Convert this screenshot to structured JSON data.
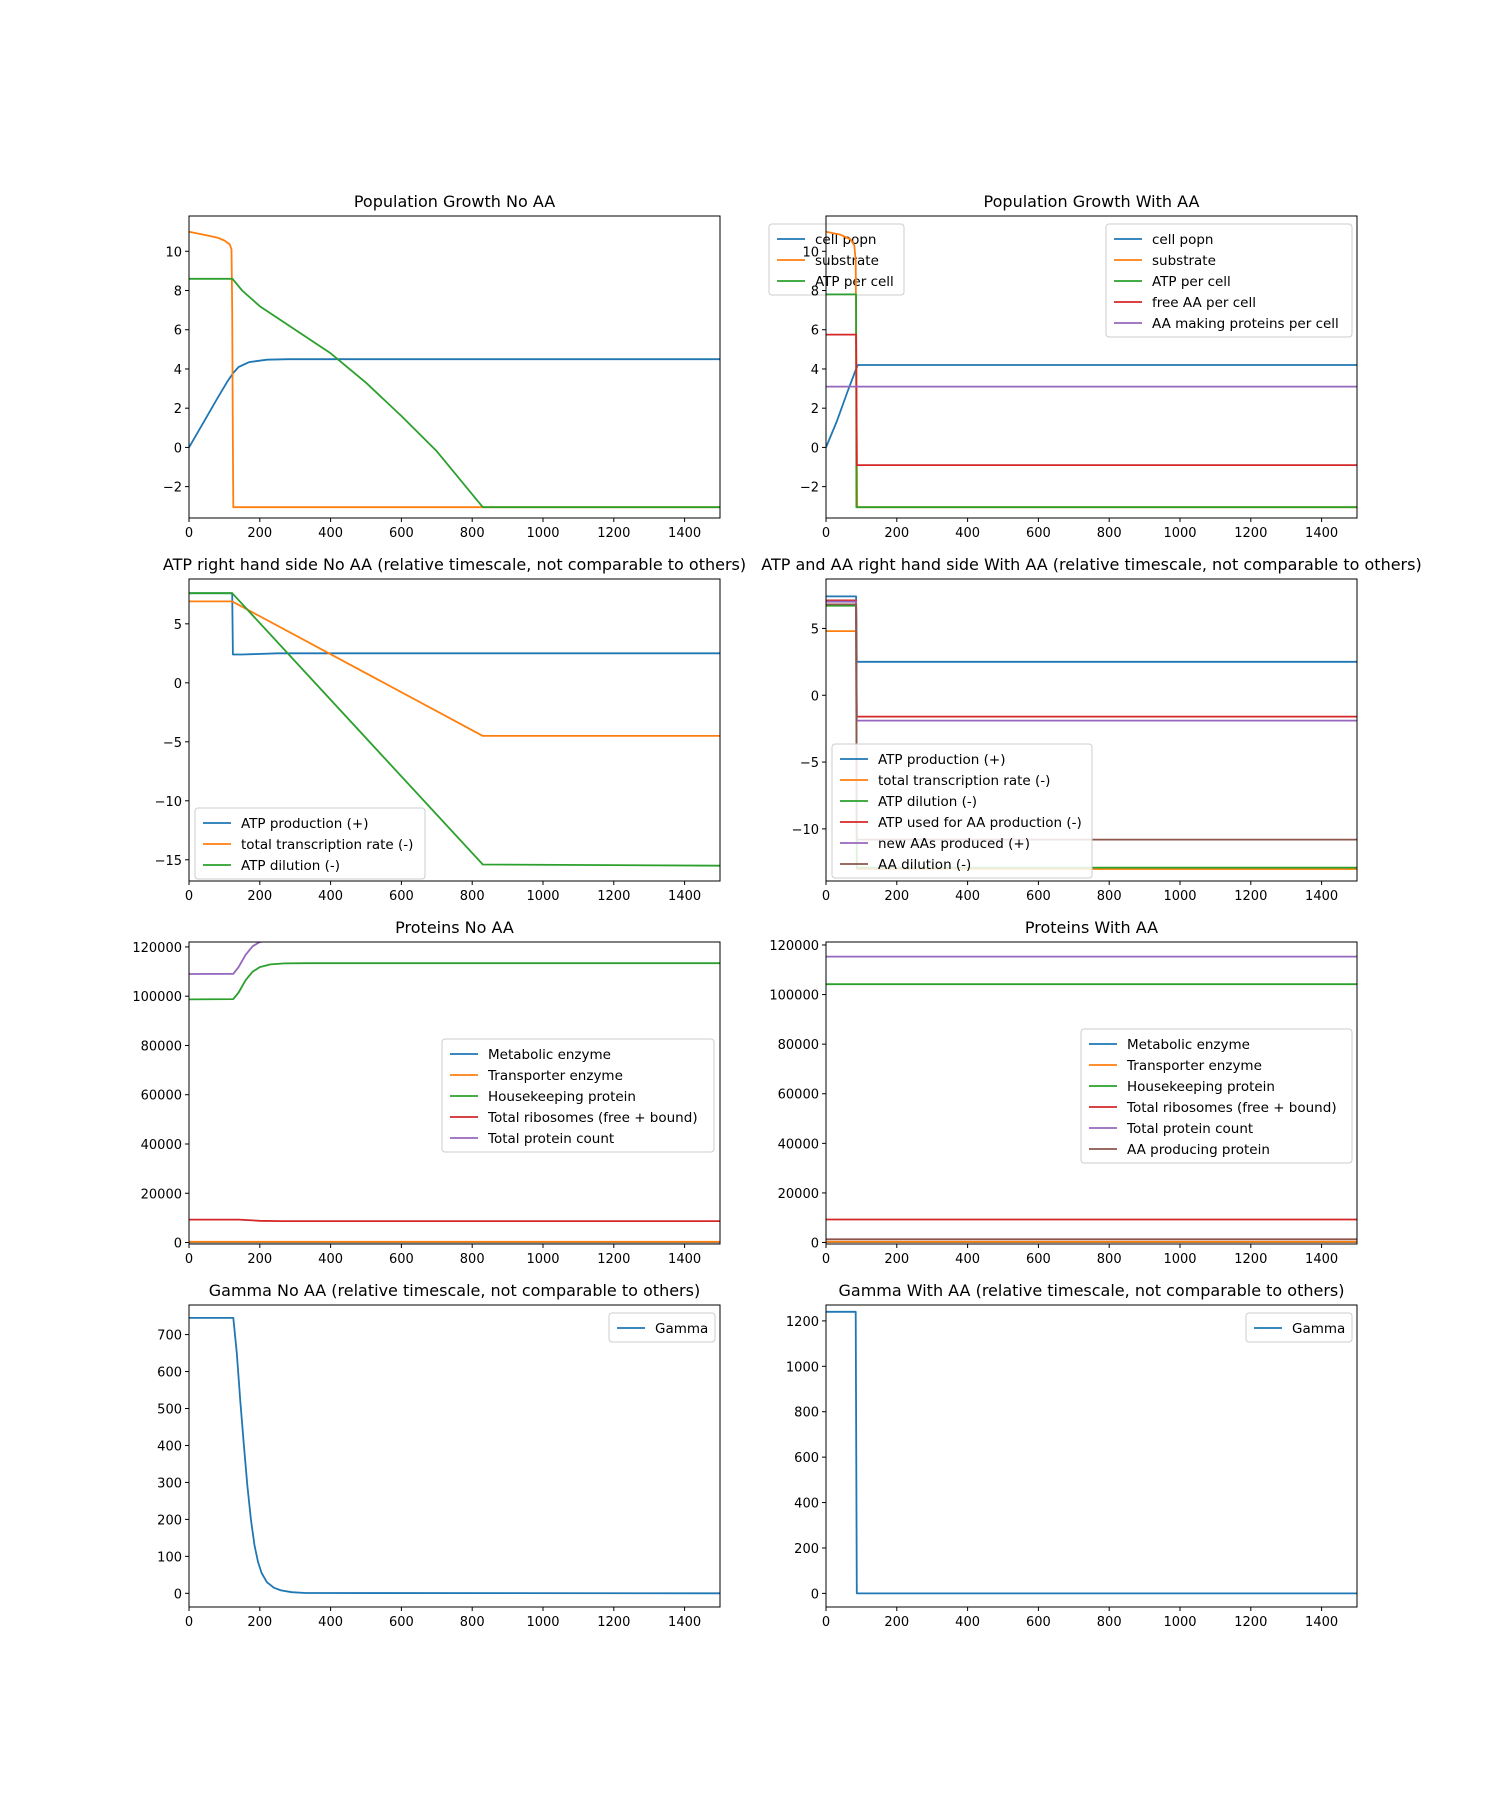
{
  "colors": {
    "C0": "#1f77b4",
    "C1": "#ff7f0e",
    "C2": "#2ca02c",
    "C3": "#d62728",
    "C4": "#9467bd",
    "C5": "#8c564b"
  },
  "chart_data": [
    {
      "type": "line",
      "title": "Population Growth No AA",
      "xlim": [
        0,
        1500
      ],
      "ylim": [
        -3.6,
        11.8
      ],
      "xticks": [
        0,
        200,
        400,
        600,
        800,
        1000,
        1200,
        1400
      ],
      "xtick_labels": [
        "0",
        "200",
        "400",
        "600",
        "800",
        "1000",
        "1200",
        "1400"
      ],
      "yticks": [
        -2,
        0,
        2,
        4,
        6,
        8,
        10
      ],
      "ytick_labels": [
        "−2",
        "0",
        "2",
        "4",
        "6",
        "8",
        "10"
      ],
      "legend": "upper right",
      "grid": false,
      "series": [
        {
          "name": "cell popn",
          "color": "#1f77b4",
          "x": [
            0,
            40,
            80,
            110,
            125,
            140,
            170,
            220,
            280,
            350,
            1500
          ],
          "y": [
            0,
            1.25,
            2.5,
            3.4,
            3.8,
            4.1,
            4.35,
            4.47,
            4.5,
            4.5,
            4.5
          ]
        },
        {
          "name": "substrate",
          "color": "#ff7f0e",
          "x": [
            0,
            40,
            80,
            100,
            115,
            120,
            122,
            124,
            125,
            1500
          ],
          "y": [
            11,
            10.85,
            10.7,
            10.55,
            10.35,
            10.1,
            7,
            0,
            -3.05,
            -3.05
          ]
        },
        {
          "name": "ATP per cell",
          "color": "#2ca02c",
          "x": [
            0,
            122,
            123,
            150,
            200,
            250,
            300,
            400,
            500,
            600,
            700,
            830,
            1500
          ],
          "y": [
            8.6,
            8.6,
            8.6,
            8.0,
            7.2,
            6.6,
            6.0,
            4.8,
            3.3,
            1.6,
            -0.2,
            -3.05,
            -3.05
          ]
        }
      ]
    },
    {
      "type": "line",
      "title": "Population Growth With AA",
      "xlim": [
        0,
        1500
      ],
      "ylim": [
        -3.6,
        11.8
      ],
      "xticks": [
        0,
        200,
        400,
        600,
        800,
        1000,
        1200,
        1400
      ],
      "xtick_labels": [
        "0",
        "200",
        "400",
        "600",
        "800",
        "1000",
        "1200",
        "1400"
      ],
      "yticks": [
        -2,
        0,
        2,
        4,
        6,
        8,
        10
      ],
      "ytick_labels": [
        "−2",
        "0",
        "2",
        "4",
        "6",
        "8",
        "10"
      ],
      "legend": "upper right",
      "grid": false,
      "series": [
        {
          "name": "cell popn",
          "color": "#1f77b4",
          "x": [
            0,
            30,
            60,
            85,
            90,
            1500
          ],
          "y": [
            0,
            1.3,
            2.8,
            4.0,
            4.2,
            4.2
          ]
        },
        {
          "name": "substrate",
          "color": "#ff7f0e",
          "x": [
            0,
            40,
            70,
            80,
            84,
            86,
            88,
            1500
          ],
          "y": [
            11,
            10.85,
            10.6,
            10.3,
            9.5,
            3,
            -3.05,
            -3.05
          ]
        },
        {
          "name": "ATP per cell",
          "color": "#2ca02c",
          "x": [
            0,
            85,
            86,
            1500
          ],
          "y": [
            7.8,
            7.8,
            -3.05,
            -3.05
          ]
        },
        {
          "name": "free AA per cell",
          "color": "#d62728",
          "x": [
            0,
            85,
            87,
            1500
          ],
          "y": [
            5.75,
            5.75,
            -0.9,
            -0.9
          ]
        },
        {
          "name": "AA making proteins per cell",
          "color": "#9467bd",
          "x": [
            0,
            1500
          ],
          "y": [
            3.1,
            3.1
          ]
        }
      ]
    },
    {
      "type": "line",
      "title": "ATP right hand side No AA   (relative timescale, not comparable to others)",
      "xlim": [
        0,
        1500
      ],
      "ylim": [
        -16.8,
        8.8
      ],
      "xticks": [
        0,
        200,
        400,
        600,
        800,
        1000,
        1200,
        1400
      ],
      "xtick_labels": [
        "0",
        "200",
        "400",
        "600",
        "800",
        "1000",
        "1200",
        "1400"
      ],
      "yticks": [
        -15,
        -10,
        -5,
        0,
        5
      ],
      "ytick_labels": [
        "−15",
        "−10",
        "−5",
        "0",
        "5"
      ],
      "legend": "lower left",
      "grid": false,
      "series": [
        {
          "name": "ATP production (+)",
          "color": "#1f77b4",
          "x": [
            0,
            122,
            124,
            150,
            250,
            1500
          ],
          "y": [
            7.6,
            7.6,
            2.4,
            2.4,
            2.5,
            2.5
          ]
        },
        {
          "name": "total transcription rate (-)",
          "color": "#ff7f0e",
          "x": [
            0,
            122,
            830,
            1500
          ],
          "y": [
            6.9,
            6.9,
            -4.5,
            -4.5
          ]
        },
        {
          "name": "ATP dilution (-)",
          "color": "#2ca02c",
          "x": [
            0,
            122,
            830,
            1500
          ],
          "y": [
            7.6,
            7.6,
            -15.4,
            -15.5
          ]
        }
      ]
    },
    {
      "type": "line",
      "title": "ATP and AA right hand side With AA   (relative timescale, not comparable to others)",
      "xlim": [
        0,
        1500
      ],
      "ylim": [
        -13.9,
        8.7
      ],
      "xticks": [
        0,
        200,
        400,
        600,
        800,
        1000,
        1200,
        1400
      ],
      "xtick_labels": [
        "0",
        "200",
        "400",
        "600",
        "800",
        "1000",
        "1200",
        "1400"
      ],
      "yticks": [
        -10,
        -5,
        0,
        5
      ],
      "ytick_labels": [
        "−10",
        "−5",
        "0",
        "5"
      ],
      "legend": "lower left",
      "grid": false,
      "series": [
        {
          "name": "ATP production (+)",
          "color": "#1f77b4",
          "x": [
            0,
            85,
            87,
            1500
          ],
          "y": [
            7.4,
            7.4,
            2.5,
            2.5
          ]
        },
        {
          "name": "total transcription rate (-)",
          "color": "#ff7f0e",
          "x": [
            0,
            85,
            87,
            1500
          ],
          "y": [
            4.8,
            4.8,
            -13.0,
            -13.0
          ]
        },
        {
          "name": "ATP dilution (-)",
          "color": "#2ca02c",
          "x": [
            0,
            85,
            87,
            1500
          ],
          "y": [
            6.7,
            6.7,
            -12.9,
            -12.9
          ]
        },
        {
          "name": "ATP used for AA production (-)",
          "color": "#d62728",
          "x": [
            0,
            85,
            87,
            1500
          ],
          "y": [
            7.1,
            7.1,
            -1.6,
            -1.6
          ]
        },
        {
          "name": "new AAs produced (+)",
          "color": "#9467bd",
          "x": [
            0,
            85,
            87,
            1500
          ],
          "y": [
            7.0,
            7.0,
            -1.9,
            -1.9
          ]
        },
        {
          "name": "AA dilution (-)",
          "color": "#8c564b",
          "x": [
            0,
            85,
            87,
            1500
          ],
          "y": [
            6.8,
            6.8,
            -10.8,
            -10.8
          ]
        }
      ]
    },
    {
      "type": "line",
      "title": "Proteins No AA",
      "xlim": [
        0,
        1500
      ],
      "ylim": [
        -600,
        122000
      ],
      "xticks": [
        0,
        200,
        400,
        600,
        800,
        1000,
        1200,
        1400
      ],
      "xtick_labels": [
        "0",
        "200",
        "400",
        "600",
        "800",
        "1000",
        "1200",
        "1400"
      ],
      "yticks": [
        0,
        20000,
        40000,
        60000,
        80000,
        100000,
        120000
      ],
      "ytick_labels": [
        "0",
        "20000",
        "40000",
        "60000",
        "80000",
        "100000",
        "120000"
      ],
      "legend": "center right",
      "grid": false,
      "series": [
        {
          "name": "Metabolic enzyme",
          "color": "#1f77b4",
          "x": [
            0,
            1500
          ],
          "y": [
            150,
            150
          ]
        },
        {
          "name": "Transporter enzyme",
          "color": "#ff7f0e",
          "x": [
            0,
            1500
          ],
          "y": [
            300,
            300
          ]
        },
        {
          "name": "Housekeeping protein",
          "color": "#2ca02c",
          "x": [
            0,
            125,
            140,
            160,
            180,
            200,
            230,
            270,
            330,
            1500
          ],
          "y": [
            98700,
            98800,
            101500,
            106500,
            110000,
            111800,
            112900,
            113300,
            113400,
            113400
          ]
        },
        {
          "name": "Total ribosomes (free + bound)",
          "color": "#d62728",
          "x": [
            0,
            140,
            200,
            260,
            1500
          ],
          "y": [
            9300,
            9300,
            8800,
            8700,
            8700
          ]
        },
        {
          "name": "Total protein count",
          "color": "#9467bd",
          "x": [
            0,
            125,
            140,
            160,
            180,
            200,
            230,
            270,
            330,
            1500
          ],
          "y": [
            109000,
            109100,
            111800,
            116800,
            120300,
            122000,
            122700,
            123000,
            123100,
            123100
          ]
        }
      ]
    },
    {
      "type": "line",
      "title": "Proteins With AA",
      "xlim": [
        0,
        1500
      ],
      "ylim": [
        -600,
        121200
      ],
      "xticks": [
        0,
        200,
        400,
        600,
        800,
        1000,
        1200,
        1400
      ],
      "xtick_labels": [
        "0",
        "200",
        "400",
        "600",
        "800",
        "1000",
        "1200",
        "1400"
      ],
      "yticks": [
        0,
        20000,
        40000,
        60000,
        80000,
        100000,
        120000
      ],
      "ytick_labels": [
        "0",
        "20000",
        "40000",
        "60000",
        "80000",
        "100000",
        "120000"
      ],
      "legend": "center right",
      "grid": false,
      "series": [
        {
          "name": "Metabolic enzyme",
          "color": "#1f77b4",
          "x": [
            0,
            1500
          ],
          "y": [
            150,
            150
          ]
        },
        {
          "name": "Transporter enzyme",
          "color": "#ff7f0e",
          "x": [
            0,
            1500
          ],
          "y": [
            300,
            300
          ]
        },
        {
          "name": "Housekeeping protein",
          "color": "#2ca02c",
          "x": [
            0,
            1500
          ],
          "y": [
            104200,
            104200
          ]
        },
        {
          "name": "Total ribosomes (free + bound)",
          "color": "#d62728",
          "x": [
            0,
            1500
          ],
          "y": [
            9300,
            9300
          ]
        },
        {
          "name": "Total protein count",
          "color": "#9467bd",
          "x": [
            0,
            1500
          ],
          "y": [
            115300,
            115300
          ]
        },
        {
          "name": "AA producing protein",
          "color": "#8c564b",
          "x": [
            0,
            1500
          ],
          "y": [
            1300,
            1300
          ]
        }
      ]
    },
    {
      "type": "line",
      "title": "Gamma No AA   (relative timescale, not comparable to others)",
      "xlim": [
        0,
        1500
      ],
      "ylim": [
        -37,
        780
      ],
      "xticks": [
        0,
        200,
        400,
        600,
        800,
        1000,
        1200,
        1400
      ],
      "xtick_labels": [
        "0",
        "200",
        "400",
        "600",
        "800",
        "1000",
        "1200",
        "1400"
      ],
      "yticks": [
        0,
        100,
        200,
        300,
        400,
        500,
        600,
        700
      ],
      "ytick_labels": [
        "0",
        "100",
        "200",
        "300",
        "400",
        "500",
        "600",
        "700"
      ],
      "legend": "upper right",
      "grid": false,
      "series": [
        {
          "name": "Gamma",
          "color": "#1f77b4",
          "x": [
            0,
            125,
            135,
            145,
            155,
            165,
            175,
            185,
            195,
            205,
            220,
            240,
            260,
            290,
            330,
            1500
          ],
          "y": [
            745,
            745,
            650,
            520,
            400,
            290,
            200,
            130,
            85,
            55,
            30,
            15,
            8,
            3,
            1,
            0
          ]
        }
      ]
    },
    {
      "type": "line",
      "title": "Gamma With AA   (relative timescale, not comparable to others)",
      "xlim": [
        0,
        1500
      ],
      "ylim": [
        -60,
        1270
      ],
      "xticks": [
        0,
        200,
        400,
        600,
        800,
        1000,
        1200,
        1400
      ],
      "xtick_labels": [
        "0",
        "200",
        "400",
        "600",
        "800",
        "1000",
        "1200",
        "1400"
      ],
      "yticks": [
        0,
        200,
        400,
        600,
        800,
        1000,
        1200
      ],
      "ytick_labels": [
        "0",
        "200",
        "400",
        "600",
        "800",
        "1000",
        "1200"
      ],
      "legend": "upper right",
      "grid": false,
      "series": [
        {
          "name": "Gamma",
          "color": "#1f77b4",
          "x": [
            0,
            84,
            87,
            1500
          ],
          "y": [
            1240,
            1240,
            0,
            0
          ]
        }
      ]
    }
  ]
}
